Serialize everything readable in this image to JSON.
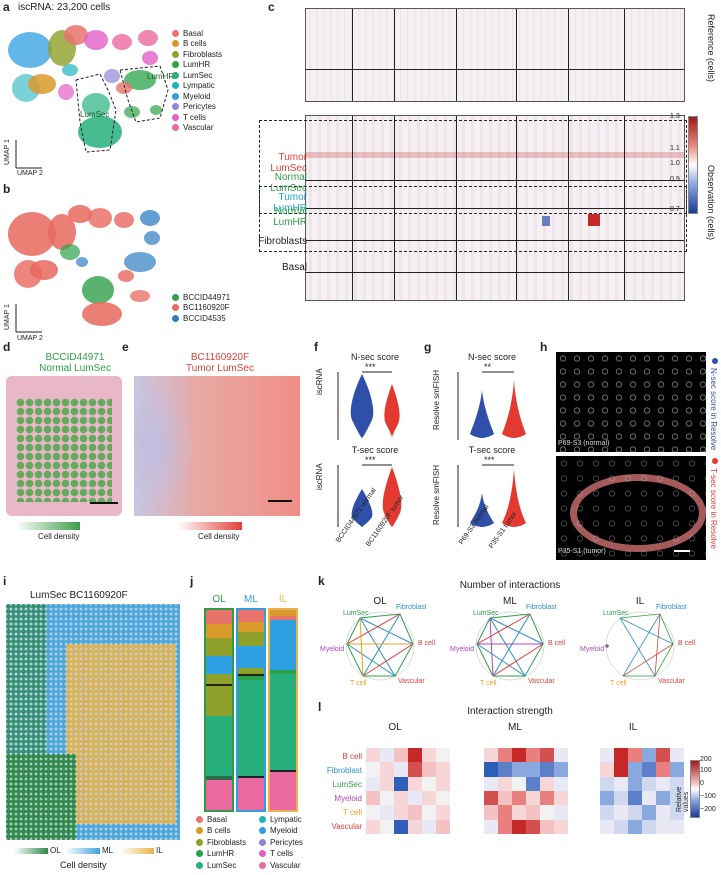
{
  "panels": {
    "a": "a",
    "b": "b",
    "c": "c",
    "d": "d",
    "e": "e",
    "f": "f",
    "g": "g",
    "h": "h",
    "i": "i",
    "j": "j",
    "k": "k",
    "l": "l"
  },
  "panel_a": {
    "title": "iscRNA: 23,200 cells",
    "umap1": "UMAP 1",
    "umap2": "UMAP 2",
    "lumhr_label": "LumHR",
    "lumsec_label": "LumSec",
    "legend": [
      {
        "label": "Basal",
        "color": "#e8736b"
      },
      {
        "label": "B cells",
        "color": "#d99a2b"
      },
      {
        "label": "Fibroblasts",
        "color": "#8fa02a"
      },
      {
        "label": "LumHR",
        "color": "#2aa24a"
      },
      {
        "label": "LumSec",
        "color": "#27b07e"
      },
      {
        "label": "Lympatic",
        "color": "#22b3bd"
      },
      {
        "label": "Myeloid",
        "color": "#2e9fe0"
      },
      {
        "label": "Pericytes",
        "color": "#8e86d8"
      },
      {
        "label": "T cells",
        "color": "#e25fc8"
      },
      {
        "label": "Vascular",
        "color": "#ea6a9f"
      }
    ]
  },
  "panel_b": {
    "umap1": "UMAP 1",
    "umap2": "UMAP 2",
    "legend": [
      {
        "label": "BCCID44971",
        "color": "#2fa04a"
      },
      {
        "label": "BC1160920F",
        "color": "#e8685e"
      },
      {
        "label": "BCCID4535",
        "color": "#2f7ec2"
      }
    ]
  },
  "panel_c": {
    "reference_label": "Reference (cells)",
    "observation_label": "Observation (cells)",
    "row_labels": [
      {
        "label": "Tumor LumSec",
        "color": "#e0403a"
      },
      {
        "label": "Normal LumSec",
        "color": "#2fa04a"
      },
      {
        "label": "Tumor LumHR",
        "color": "#22a9c9"
      },
      {
        "label": "Normal LumHR",
        "color": "#2fa04a"
      },
      {
        "label": "Fibroblasts",
        "color": "#222222"
      },
      {
        "label": "Basal",
        "color": "#222222"
      }
    ],
    "colorbar_ticks": [
      "1.3",
      "1.1",
      "1.0",
      "0.9",
      "0.7"
    ]
  },
  "panel_d": {
    "title1": "BCCID44971",
    "title2": "Normal LumSec",
    "density_label": "Cell density"
  },
  "panel_e": {
    "title1": "BC1160920F",
    "title2": "Tumor LumSec",
    "density_label": "Cell density"
  },
  "panel_f": {
    "top_title": "N-sec score",
    "bottom_title": "T-sec score",
    "ylabel": "iscRNA",
    "sig_top": "***",
    "sig_bottom": "***",
    "top_ticks": [
      "4",
      "3",
      "2",
      "1",
      "0"
    ],
    "bottom_ticks": [
      "4",
      "3",
      "2",
      "1",
      "0"
    ],
    "xticks": [
      "BCCID44971 normal",
      "BC1160920F tumor"
    ]
  },
  "panel_g": {
    "top_title": "N-sec score",
    "bottom_title": "T-sec score",
    "ylabel": "Resolve smFISH",
    "sig_top": "**",
    "sig_bottom": "***",
    "top_ticks": [
      "30",
      "20",
      "10",
      "0"
    ],
    "bottom_ticks": [
      "15",
      "10",
      "5",
      "0"
    ],
    "xticks": [
      "P69-S3 normal",
      "P35-S1 tumor"
    ]
  },
  "panel_h": {
    "top_caption": "P69-S3 (normal)",
    "bottom_caption": "P35-S1 (tumor)",
    "top_side": "N-sec score in Resolve",
    "bottom_side": "T-sec score in Resolve"
  },
  "panel_i": {
    "title": "LumSec BC1160920F",
    "density_label": "Cell density",
    "ol": "OL",
    "ml": "ML",
    "il": "IL"
  },
  "panel_j": {
    "headers": [
      {
        "label": "OL",
        "color": "#2f9b4a"
      },
      {
        "label": "ML",
        "color": "#2e9fe0"
      },
      {
        "label": "IL",
        "color": "#e9b24a"
      }
    ],
    "legend": [
      {
        "label": "Basal",
        "color": "#e8736b"
      },
      {
        "label": "Lympatic",
        "color": "#22b3bd"
      },
      {
        "label": "B cells",
        "color": "#d99a2b"
      },
      {
        "label": "Myeloid",
        "color": "#2e9fe0"
      },
      {
        "label": "Fibroblasts",
        "color": "#8fa02a"
      },
      {
        "label": "Pericytes",
        "color": "#8e86d8"
      },
      {
        "label": "LumHR",
        "color": "#2aa24a"
      },
      {
        "label": "T cells",
        "color": "#e25fc8"
      },
      {
        "label": "LumSec",
        "color": "#27b07e"
      },
      {
        "label": "Vascular",
        "color": "#ea6a9f"
      }
    ]
  },
  "panel_k": {
    "title": "Number of interactions",
    "groups": [
      "OL",
      "ML",
      "IL"
    ],
    "nodes": [
      "LumSec",
      "Fibroblast",
      "B cell",
      "Vascular",
      "T cell",
      "Myeloid"
    ]
  },
  "panel_l": {
    "title": "Interaction strength",
    "groups": [
      "OL",
      "ML",
      "IL"
    ],
    "rows": [
      {
        "label": "B cell",
        "color": "#e0403a"
      },
      {
        "label": "Fibroblast",
        "color": "#2e8fc9"
      },
      {
        "label": "LumSec",
        "color": "#2fa04a"
      },
      {
        "label": "Myeloid",
        "color": "#b048b8"
      },
      {
        "label": "T cell",
        "color": "#e9a22a"
      },
      {
        "label": "Vascular",
        "color": "#e0403a"
      }
    ],
    "colorbar_label": "Relative values",
    "colorbar_ticks": [
      "200",
      "100",
      "0",
      "−100",
      "−200"
    ]
  }
}
